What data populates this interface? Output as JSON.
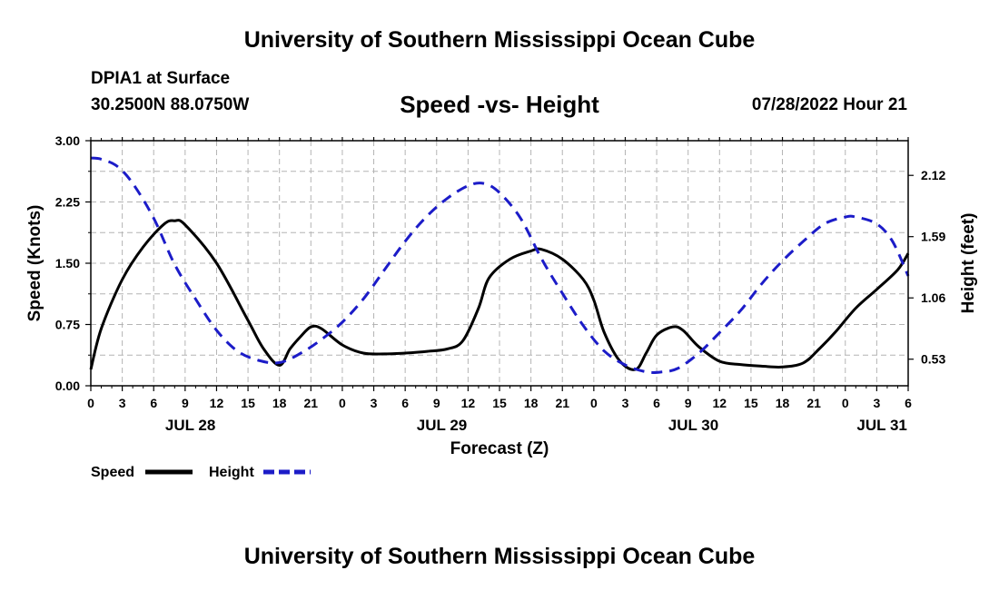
{
  "header": {
    "title": "University of Southern Mississippi Ocean Cube",
    "station": "DPIA1 at Surface",
    "coords": "30.2500N  88.0750W",
    "subtitle": "Speed -vs- Height",
    "datestamp": "07/28/2022 Hour 21"
  },
  "footer": {
    "title": "University of Southern Mississippi Ocean Cube"
  },
  "chart_data": {
    "type": "line",
    "xlabel": "Forecast (Z)",
    "ylabel_left": "Speed (Knots)",
    "ylabel_right": "Height (feet)",
    "x_range": [
      0,
      78
    ],
    "x_tick_labels": [
      "0",
      "3",
      "6",
      "9",
      "12",
      "15",
      "18",
      "21",
      "0",
      "3",
      "6",
      "9",
      "12",
      "15",
      "18",
      "21",
      "0",
      "3",
      "6",
      "9",
      "12",
      "15",
      "18",
      "21",
      "0",
      "3",
      "6"
    ],
    "day_labels": [
      {
        "x": 9.5,
        "label": "JUL 28"
      },
      {
        "x": 33.5,
        "label": "JUL 29"
      },
      {
        "x": 57.5,
        "label": "JUL 30"
      },
      {
        "x": 75.5,
        "label": "JUL 31"
      }
    ],
    "ylim_left": [
      0,
      3
    ],
    "yticks_left": [
      "0.00",
      "0.75",
      "1.50",
      "2.25",
      "3.00"
    ],
    "ylim_right": [
      0.3,
      2.42
    ],
    "yticks_right": [
      "0.53",
      "1.06",
      "1.59",
      "2.12"
    ],
    "grid": true,
    "legend_position": "bottom-left",
    "series": [
      {
        "name": "Speed",
        "axis": "left",
        "color": "#000000",
        "style": "solid",
        "points": [
          [
            0,
            0.2
          ],
          [
            1,
            0.7
          ],
          [
            3,
            1.3
          ],
          [
            5,
            1.7
          ],
          [
            7,
            1.98
          ],
          [
            8,
            2.02
          ],
          [
            9,
            1.97
          ],
          [
            12,
            1.5
          ],
          [
            15,
            0.8
          ],
          [
            16.5,
            0.45
          ],
          [
            18,
            0.25
          ],
          [
            19,
            0.45
          ],
          [
            20,
            0.6
          ],
          [
            21,
            0.72
          ],
          [
            22,
            0.7
          ],
          [
            24,
            0.5
          ],
          [
            26,
            0.4
          ],
          [
            28,
            0.39
          ],
          [
            30,
            0.4
          ],
          [
            32,
            0.42
          ],
          [
            34,
            0.45
          ],
          [
            35.5,
            0.55
          ],
          [
            37,
            0.95
          ],
          [
            38,
            1.32
          ],
          [
            40,
            1.55
          ],
          [
            42,
            1.65
          ],
          [
            43,
            1.67
          ],
          [
            45,
            1.55
          ],
          [
            47,
            1.3
          ],
          [
            48,
            1.05
          ],
          [
            49,
            0.65
          ],
          [
            50.5,
            0.3
          ],
          [
            52,
            0.2
          ],
          [
            53,
            0.4
          ],
          [
            54,
            0.62
          ],
          [
            55.5,
            0.72
          ],
          [
            56.5,
            0.68
          ],
          [
            58,
            0.48
          ],
          [
            60,
            0.3
          ],
          [
            62,
            0.26
          ],
          [
            64,
            0.24
          ],
          [
            66,
            0.23
          ],
          [
            68,
            0.28
          ],
          [
            69.5,
            0.45
          ],
          [
            71,
            0.65
          ],
          [
            73,
            0.95
          ],
          [
            75,
            1.18
          ],
          [
            77,
            1.42
          ],
          [
            78,
            1.62
          ]
        ]
      },
      {
        "name": "Height",
        "axis": "right",
        "color": "#1c1cc8",
        "style": "dashed",
        "points": [
          [
            0,
            2.27
          ],
          [
            1,
            2.26
          ],
          [
            2.5,
            2.2
          ],
          [
            4,
            2.05
          ],
          [
            6,
            1.75
          ],
          [
            8,
            1.35
          ],
          [
            10,
            1.05
          ],
          [
            12,
            0.78
          ],
          [
            14,
            0.6
          ],
          [
            16,
            0.52
          ],
          [
            18,
            0.5
          ],
          [
            20,
            0.58
          ],
          [
            22,
            0.7
          ],
          [
            24,
            0.85
          ],
          [
            26,
            1.05
          ],
          [
            28,
            1.3
          ],
          [
            30,
            1.55
          ],
          [
            32,
            1.76
          ],
          [
            34,
            1.92
          ],
          [
            36,
            2.03
          ],
          [
            37.5,
            2.05
          ],
          [
            39,
            1.97
          ],
          [
            41,
            1.75
          ],
          [
            43,
            1.4
          ],
          [
            45,
            1.1
          ],
          [
            47,
            0.82
          ],
          [
            49,
            0.6
          ],
          [
            51,
            0.48
          ],
          [
            53,
            0.42
          ],
          [
            54.5,
            0.42
          ],
          [
            56,
            0.45
          ],
          [
            58,
            0.58
          ],
          [
            60,
            0.76
          ],
          [
            62,
            0.95
          ],
          [
            64,
            1.18
          ],
          [
            66,
            1.38
          ],
          [
            68,
            1.55
          ],
          [
            70,
            1.7
          ],
          [
            72,
            1.76
          ],
          [
            73,
            1.76
          ],
          [
            75,
            1.7
          ],
          [
            76.5,
            1.55
          ],
          [
            78,
            1.25
          ]
        ]
      }
    ]
  }
}
